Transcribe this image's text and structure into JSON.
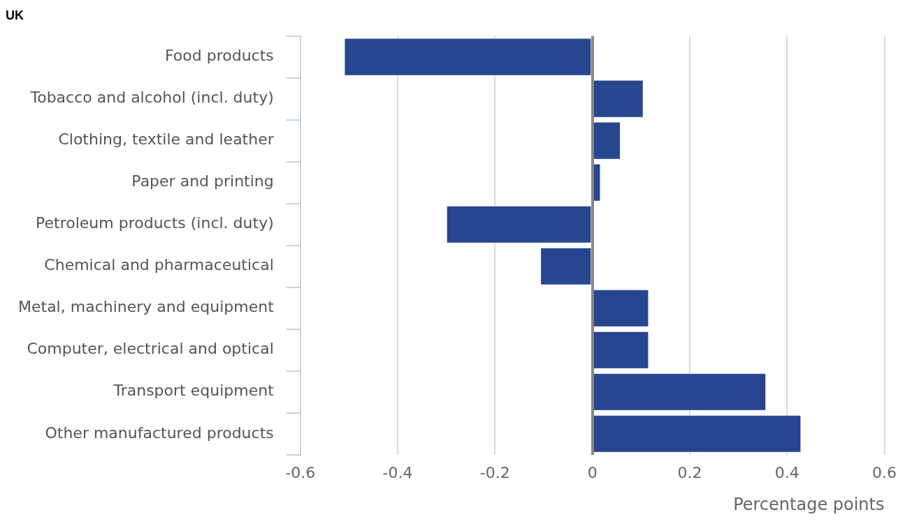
{
  "chart_data": {
    "type": "bar",
    "orientation": "horizontal",
    "title": "UK",
    "xlabel": "Percentage points",
    "categories": [
      "Food products",
      "Tobacco and alcohol (incl. duty)",
      "Clothing, textile and leather",
      "Paper and printing",
      "Petroleum products (incl. duty)",
      "Chemical and pharmaceutical",
      "Metal, machinery and equipment",
      "Computer, electrical and optical",
      "Transport equipment",
      "Other manufactured products"
    ],
    "values": [
      -0.51,
      0.105,
      0.058,
      0.017,
      -0.3,
      -0.107,
      0.116,
      0.116,
      0.357,
      0.429
    ],
    "color": "#27468f",
    "xlim": [
      -0.6,
      0.6
    ],
    "xticks": [
      -0.6,
      -0.4,
      -0.2,
      0,
      0.2,
      0.4,
      0.6
    ],
    "grid": "x",
    "legend": false
  }
}
